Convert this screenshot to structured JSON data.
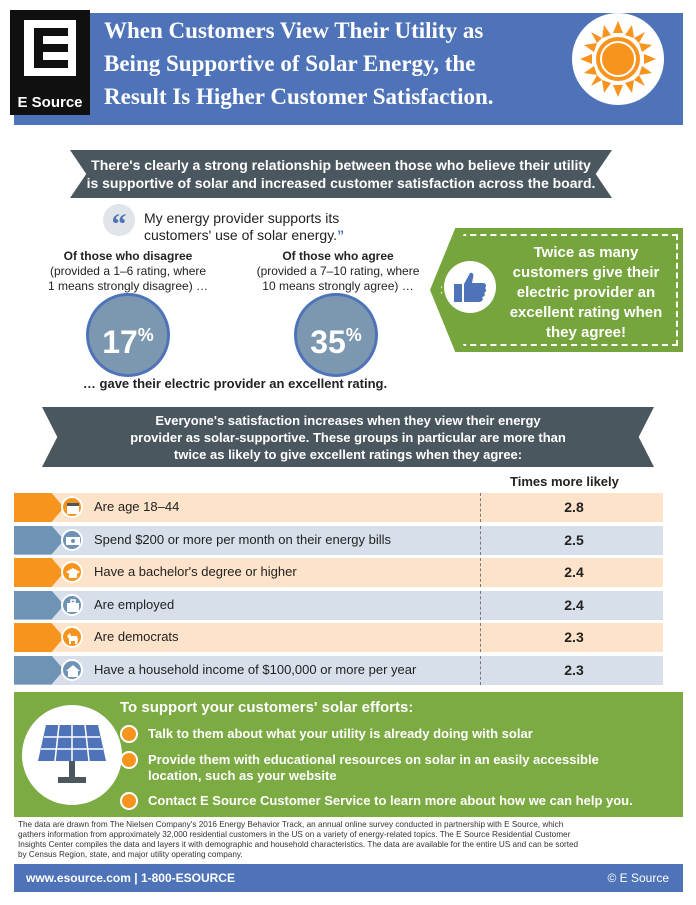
{
  "header": {
    "logo_text": "E Source",
    "title_line1": "When Customers View Their Utility as",
    "title_line2": "Being Supportive of Solar Energy, the",
    "title_line3": "Result Is Higher Customer Satisfaction.",
    "sun_icon": "sun-icon"
  },
  "section1": {
    "banner_line1": "There's clearly a strong relationship between those who believe their utility",
    "banner_line2": "is supportive of solar and increased customer satisfaction across the board.",
    "quote_mark": "“",
    "quote_line1": "My energy provider supports its",
    "quote_line2": "customers' use of solar energy.",
    "quote_close": "”",
    "left_head": "Of those who disagree",
    "left_sub1": "(provided a 1–6 rating, where",
    "left_sub2": "1 means strongly disagree) …",
    "left_value": "17",
    "right_head": "Of those who agree",
    "right_sub1": "(provided a 7–10 rating, where",
    "right_sub2": "10 means strongly agree) …",
    "right_value": "35",
    "pct_sign": "%",
    "gave_text": "… gave their electric provider an excellent rating.",
    "callout_line1": "Twice as many",
    "callout_line2": "customers give their",
    "callout_line3": "electric provider an",
    "callout_line4": "excellent rating when",
    "callout_line5": "they agree!"
  },
  "section2": {
    "banner_line1": "Everyone's satisfaction increases when they view their energy",
    "banner_line2": "provider as solar-supportive. These groups in particular are more than",
    "banner_line3": "twice as likely to give excellent ratings when they agree:",
    "column_header": "Times more likely",
    "rows": [
      {
        "label": "Are age 18–44",
        "value": "2.8",
        "icon": "calendar-icon"
      },
      {
        "label": "Spend $200 or more per month on their energy bills",
        "value": "2.5",
        "icon": "money-icon"
      },
      {
        "label": "Have a bachelor's degree or higher",
        "value": "2.4",
        "icon": "graduation-cap-icon"
      },
      {
        "label": "Are employed",
        "value": "2.4",
        "icon": "briefcase-icon"
      },
      {
        "label": "Are democrats",
        "value": "2.3",
        "icon": "donkey-icon"
      },
      {
        "label": "Have a household income of $100,000 or more per year",
        "value": "2.3",
        "icon": "house-icon"
      }
    ],
    "colors": {
      "orange": "#f7941e",
      "orange_stripe": "#fde3c9",
      "blue": "#6f93b4",
      "blue_stripe": "#d7e0ea"
    }
  },
  "section3": {
    "title": "To support your customers' solar efforts:",
    "bullet1": "Talk to them about what your utility is already doing with solar",
    "bullet2_line1": "Provide them with educational resources on solar in an easily accessible",
    "bullet2_line2": "location, such as your website",
    "bullet3": "Contact E Source Customer Service to learn more about how we can help you."
  },
  "footnote": {
    "line1": "The data are drawn from The Nielsen Company's 2016 Energy Behavior Track, an annual online survey conducted in partnership with E Source, which",
    "line2": "gathers information from approximately 32,000 residential customers in the US on a variety of energy-related topics. The E Source Residential Customer",
    "line3": "Insights Center compiles the data and layers it with demographic and household characteristics. The data are available for the entire US and can be sorted",
    "line4": "by Census Region, state, and major utility operating company."
  },
  "footer": {
    "left": "www.esource.com | 1-800-ESOURCE",
    "right": "© E Source"
  }
}
